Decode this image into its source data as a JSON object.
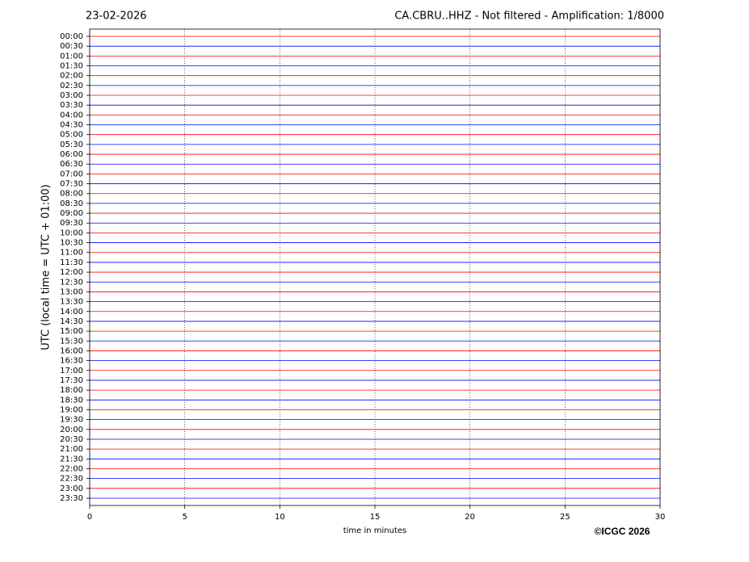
{
  "chart_data": {
    "type": "helicorder",
    "title_left": "23-02-2026",
    "title": "CA.CBRU..HHZ - Not filtered - Amplification: 1/8000",
    "y_label": "UTC (local time = UTC + 01:00)",
    "x_label": "time in minutes",
    "categories": [
      "00:00",
      "00:30",
      "01:00",
      "01:30",
      "02:00",
      "02:30",
      "03:00",
      "03:30",
      "04:00",
      "04:30",
      "05:00",
      "05:30",
      "06:00",
      "06:30",
      "07:00",
      "07:30",
      "08:00",
      "08:30",
      "09:00",
      "09:30",
      "10:00",
      "10:30",
      "11:00",
      "11:30",
      "12:00",
      "12:30",
      "13:00",
      "13:30",
      "14:00",
      "14:30",
      "15:00",
      "15:30",
      "16:00",
      "16:30",
      "17:00",
      "17:30",
      "18:00",
      "18:30",
      "19:00",
      "19:30",
      "20:00",
      "20:30",
      "21:00",
      "21:30",
      "22:00",
      "22:30",
      "23:00",
      "23:30"
    ],
    "colors": [
      "#ff0000",
      "#0000ff"
    ],
    "xlim": [
      0,
      30
    ],
    "xticks": [
      0,
      5,
      10,
      15,
      20,
      25,
      30
    ],
    "grid": true
  },
  "footer": {
    "copyright": "©ICGC 2026"
  }
}
